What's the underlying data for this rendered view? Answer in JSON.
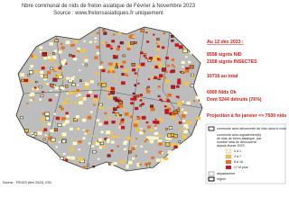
{
  "header": {
    "title": "Nbre communal de nids de frelon asiatique de Février à Novembre 2023",
    "source": "Source : www.frelonsasiatiques.fr uniquement"
  },
  "stats": {
    "date": "Au 12 déc 2023 :",
    "lines": [
      "8558  signts NID",
      "2158  signts INSECTES",
      "10716  au total",
      "6900  Nids Ok",
      "Dont 5244  détruits (76%)",
      "Projection à fin janvier => 7500 nids"
    ]
  },
  "legend": {
    "monthly": "commune avec découverte de nids dans le mois",
    "total": [
      "commune avec signalement(s)",
      "de nids de frelon asiatique, par",
      "nombre total de découverte",
      "depuis février 2023"
    ],
    "classes": [
      "0 à 1",
      "2 à 7",
      "8 à 16",
      "17 et plus"
    ],
    "departement": "département",
    "region": "région"
  },
  "footer": {
    "source": "Source : TRGDS (févr 2023), IGN"
  }
}
